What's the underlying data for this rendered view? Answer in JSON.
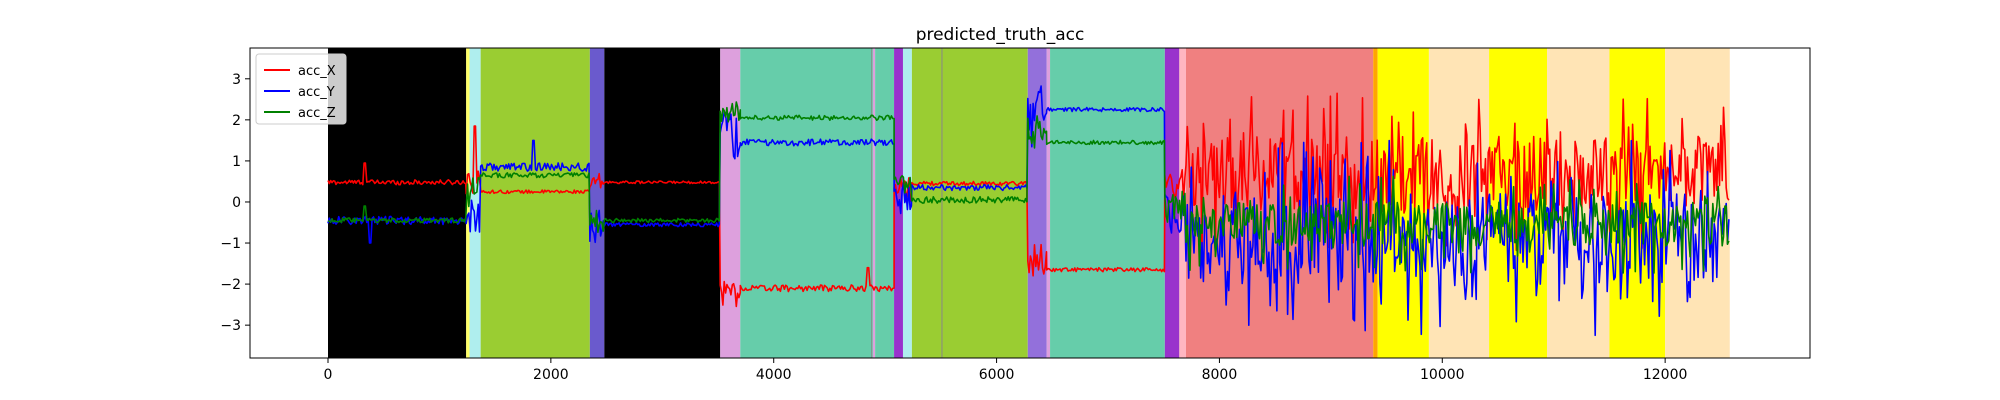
{
  "chart_data": {
    "type": "line",
    "title": "predicted_truth_acc",
    "xlabel": "",
    "ylabel": "",
    "xlim": [
      -700,
      13300
    ],
    "ylim": [
      -3.8,
      3.75
    ],
    "xticks": [
      0,
      2000,
      4000,
      6000,
      8000,
      10000,
      12000
    ],
    "yticks": [
      -3,
      -2,
      -1,
      0,
      1,
      2,
      3
    ],
    "grid": false,
    "legend": {
      "placement": "top-left",
      "entries": [
        "acc_X",
        "acc_Y",
        "acc_Z"
      ]
    },
    "background_bands": [
      {
        "x0": 0,
        "x1": 1240,
        "color": "#000000"
      },
      {
        "x0": 1240,
        "x1": 1270,
        "color": "#ffff66"
      },
      {
        "x0": 1270,
        "x1": 1370,
        "color": "#afeeee"
      },
      {
        "x0": 1370,
        "x1": 2350,
        "color": "#9acd32"
      },
      {
        "x0": 2350,
        "x1": 2480,
        "color": "#6a5acd"
      },
      {
        "x0": 2480,
        "x1": 3520,
        "color": "#000000"
      },
      {
        "x0": 3520,
        "x1": 3700,
        "color": "#dda0dd"
      },
      {
        "x0": 3700,
        "x1": 4890,
        "color": "#66cdaa"
      },
      {
        "x0": 4890,
        "x1": 4910,
        "color": "#dda0dd"
      },
      {
        "x0": 4910,
        "x1": 5080,
        "color": "#66cdaa"
      },
      {
        "x0": 5080,
        "x1": 5160,
        "color": "#9932cc"
      },
      {
        "x0": 5160,
        "x1": 5240,
        "color": "#afeeee"
      },
      {
        "x0": 5240,
        "x1": 6280,
        "color": "#9acd32"
      },
      {
        "x0": 6280,
        "x1": 6450,
        "color": "#9370db"
      },
      {
        "x0": 6450,
        "x1": 6480,
        "color": "#dda0dd"
      },
      {
        "x0": 6480,
        "x1": 7510,
        "color": "#66cdaa"
      },
      {
        "x0": 7510,
        "x1": 7640,
        "color": "#9932cc"
      },
      {
        "x0": 7640,
        "x1": 7700,
        "color": "#ffb6c1"
      },
      {
        "x0": 7700,
        "x1": 9380,
        "color": "#f08080"
      },
      {
        "x0": 9380,
        "x1": 9420,
        "color": "#ffa500"
      },
      {
        "x0": 9420,
        "x1": 9880,
        "color": "#ffff00"
      },
      {
        "x0": 9880,
        "x1": 10420,
        "color": "#ffe4b5"
      },
      {
        "x0": 10420,
        "x1": 10940,
        "color": "#ffff00"
      },
      {
        "x0": 10940,
        "x1": 11500,
        "color": "#ffe4b5"
      },
      {
        "x0": 11500,
        "x1": 12000,
        "color": "#ffff00"
      },
      {
        "x0": 12000,
        "x1": 12580,
        "color": "#ffe4b5"
      }
    ],
    "vertical_lines": [
      4880,
      5510
    ],
    "series": [
      {
        "name": "acc_X",
        "color": "#ff0000",
        "segments": [
          {
            "x0": 0,
            "x1": 1240,
            "mean": 0.48,
            "noise": 0.06,
            "spike_at": 330,
            "spike_to": 0.95
          },
          {
            "x0": 1240,
            "x1": 1370,
            "mean": 0.55,
            "noise": 0.35,
            "spike_at": 1320,
            "spike_to": 1.85
          },
          {
            "x0": 1370,
            "x1": 2350,
            "mean": 0.25,
            "noise": 0.04
          },
          {
            "x0": 2350,
            "x1": 2480,
            "mean": 0.45,
            "noise": 0.25
          },
          {
            "x0": 2480,
            "x1": 3520,
            "mean": 0.48,
            "noise": 0.03
          },
          {
            "x0": 3520,
            "x1": 3700,
            "mean": -2.2,
            "noise": 0.35
          },
          {
            "x0": 3700,
            "x1": 5080,
            "mean": -2.1,
            "noise": 0.08,
            "spike_at": 4850,
            "spike_to": -1.6
          },
          {
            "x0": 5080,
            "x1": 5240,
            "mean": 0.3,
            "noise": 0.3
          },
          {
            "x0": 5240,
            "x1": 6280,
            "mean": 0.45,
            "noise": 0.05
          },
          {
            "x0": 6280,
            "x1": 6450,
            "mean": -1.4,
            "noise": 0.4
          },
          {
            "x0": 6450,
            "x1": 7510,
            "mean": -1.65,
            "noise": 0.05
          },
          {
            "x0": 7510,
            "x1": 7700,
            "mean": 0.4,
            "noise": 0.4
          },
          {
            "x0": 7700,
            "x1": 12580,
            "mean": 0.7,
            "noise": 0.9
          }
        ]
      },
      {
        "name": "acc_Y",
        "color": "#0000ff",
        "segments": [
          {
            "x0": 0,
            "x1": 1240,
            "mean": -0.45,
            "noise": 0.1,
            "spike_at": 380,
            "spike_to": -1.0
          },
          {
            "x0": 1240,
            "x1": 1370,
            "mean": -0.3,
            "noise": 0.5
          },
          {
            "x0": 1370,
            "x1": 2350,
            "mean": 0.85,
            "noise": 0.1,
            "spike_at": 1840,
            "spike_to": 1.5
          },
          {
            "x0": 2350,
            "x1": 2480,
            "mean": -0.6,
            "noise": 0.4
          },
          {
            "x0": 2480,
            "x1": 3520,
            "mean": -0.55,
            "noise": 0.05
          },
          {
            "x0": 3520,
            "x1": 3700,
            "mean": 1.6,
            "noise": 0.6
          },
          {
            "x0": 3700,
            "x1": 5080,
            "mean": 1.45,
            "noise": 0.08
          },
          {
            "x0": 5080,
            "x1": 5240,
            "mean": 0.1,
            "noise": 0.4
          },
          {
            "x0": 5240,
            "x1": 6280,
            "mean": 0.35,
            "noise": 0.07
          },
          {
            "x0": 6280,
            "x1": 6450,
            "mean": 2.3,
            "noise": 0.6
          },
          {
            "x0": 6450,
            "x1": 7510,
            "mean": 2.25,
            "noise": 0.05
          },
          {
            "x0": 7510,
            "x1": 7700,
            "mean": -0.3,
            "noise": 0.5
          },
          {
            "x0": 7700,
            "x1": 12580,
            "mean": -0.9,
            "noise": 1.1
          }
        ]
      },
      {
        "name": "acc_Z",
        "color": "#008000",
        "segments": [
          {
            "x0": 0,
            "x1": 1240,
            "mean": -0.45,
            "noise": 0.06,
            "spike_at": 330,
            "spike_to": -0.1
          },
          {
            "x0": 1240,
            "x1": 1370,
            "mean": 0.2,
            "noise": 0.4
          },
          {
            "x0": 1370,
            "x1": 2350,
            "mean": 0.65,
            "noise": 0.06
          },
          {
            "x0": 2350,
            "x1": 2480,
            "mean": -0.5,
            "noise": 0.3
          },
          {
            "x0": 2480,
            "x1": 3520,
            "mean": -0.45,
            "noise": 0.05
          },
          {
            "x0": 3520,
            "x1": 3700,
            "mean": 2.2,
            "noise": 0.25
          },
          {
            "x0": 3700,
            "x1": 5080,
            "mean": 2.05,
            "noise": 0.06
          },
          {
            "x0": 5080,
            "x1": 5240,
            "mean": 0.4,
            "noise": 0.35
          },
          {
            "x0": 5240,
            "x1": 6280,
            "mean": 0.05,
            "noise": 0.08
          },
          {
            "x0": 6280,
            "x1": 6450,
            "mean": 1.7,
            "noise": 0.4
          },
          {
            "x0": 6450,
            "x1": 7510,
            "mean": 1.45,
            "noise": 0.05
          },
          {
            "x0": 7510,
            "x1": 7700,
            "mean": -0.1,
            "noise": 0.4
          },
          {
            "x0": 7700,
            "x1": 12580,
            "mean": -0.55,
            "noise": 0.55
          }
        ]
      }
    ]
  }
}
